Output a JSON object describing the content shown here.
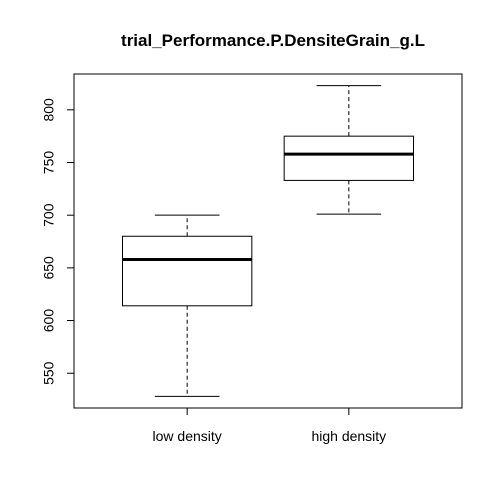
{
  "chart_data": {
    "type": "boxplot",
    "title": "trial_Performance.P.DensiteGrain_g.L",
    "xlabel": "",
    "ylabel": "",
    "ylim": [
      517,
      834
    ],
    "yticks": [
      550,
      600,
      650,
      700,
      750,
      800
    ],
    "categories": [
      "low density",
      "high density"
    ],
    "boxes": [
      {
        "category": "low density",
        "min": 528,
        "q1": 614,
        "median": 658,
        "q3": 680,
        "max": 700
      },
      {
        "category": "high density",
        "min": 701,
        "q1": 733,
        "median": 758,
        "q3": 775,
        "max": 823
      }
    ],
    "grid": false,
    "legend": "none"
  }
}
